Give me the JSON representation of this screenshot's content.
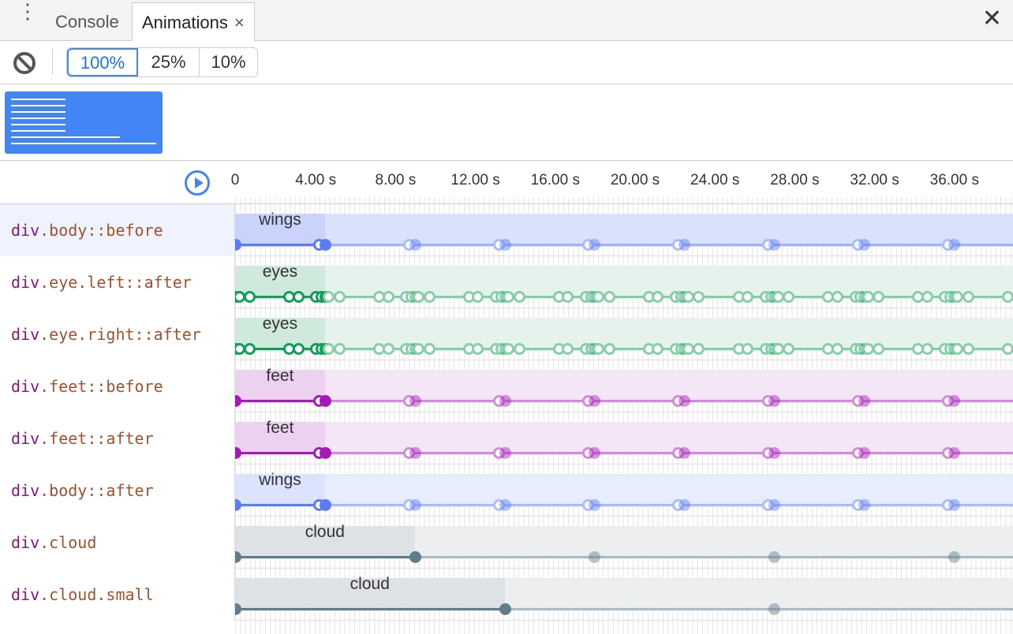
{
  "tabs": [
    {
      "label": "Console",
      "active": false
    },
    {
      "label": "Animations",
      "active": true,
      "close": "×"
    }
  ],
  "close_label": "✕",
  "toolbar": {
    "speeds": [
      "100%",
      "25%",
      "10%"
    ],
    "selected": "100%"
  },
  "timeline": {
    "ticks": [
      "0",
      "4.00 s",
      "8.00 s",
      "12.00 s",
      "16.00 s",
      "20.00 s",
      "24.00 s",
      "28.00 s",
      "32.00 s",
      "36.00 s"
    ],
    "tick_seconds": [
      0,
      4,
      8,
      12,
      16,
      20,
      24,
      28,
      32,
      36
    ]
  },
  "rows": [
    {
      "tag": "div",
      "selector": ".body::before",
      "name": "wings",
      "color": "#5b7cf5",
      "duration_s": 4.5,
      "keyframes": [
        0,
        0.93,
        1
      ],
      "selected": true,
      "shade": "#c9d3fb",
      "fade": "#d9e1fc"
    },
    {
      "tag": "div",
      "selector": ".eye.left::after",
      "name": "eyes",
      "color": "#0f9d58",
      "duration_s": 4.5,
      "keyframes": [
        0,
        0.04,
        0.16,
        0.6,
        0.7,
        0.9,
        0.96,
        1
      ],
      "shade": "#cfe9dc",
      "fade": "#e6f3ec"
    },
    {
      "tag": "div",
      "selector": ".eye.right::after",
      "name": "eyes",
      "color": "#0f9d58",
      "duration_s": 4.5,
      "keyframes": [
        0,
        0.04,
        0.16,
        0.6,
        0.7,
        0.9,
        0.96,
        1
      ],
      "shade": "#cfe9dc",
      "fade": "#e6f3ec"
    },
    {
      "tag": "div",
      "selector": ".feet::before",
      "name": "feet",
      "color": "#a31ab6",
      "duration_s": 4.5,
      "keyframes": [
        0,
        0.93,
        1
      ],
      "shade": "#ecd2f0",
      "fade": "#f4e6f6"
    },
    {
      "tag": "div",
      "selector": ".feet::after",
      "name": "feet",
      "color": "#a31ab6",
      "duration_s": 4.5,
      "keyframes": [
        0,
        0.93,
        1
      ],
      "shade": "#ecd2f0",
      "fade": "#f4e6f6"
    },
    {
      "tag": "div",
      "selector": ".body::after",
      "name": "wings",
      "color": "#5b7cf5",
      "duration_s": 4.5,
      "keyframes": [
        0,
        0.93,
        1
      ],
      "shade": "#dce3fc",
      "fade": "#e8edfd"
    },
    {
      "tag": "div",
      "selector": ".cloud",
      "name": "cloud",
      "color": "#607d8b",
      "duration_s": 9,
      "keyframes": [
        0,
        1
      ],
      "shade": "#dfe2e5",
      "fade": "#eceeef"
    },
    {
      "tag": "div",
      "selector": ".cloud.small",
      "name": "cloud",
      "color": "#607d8b",
      "duration_s": 13.5,
      "keyframes": [
        0,
        1
      ],
      "shade": "#dfe2e5",
      "fade": "#eceeef"
    }
  ]
}
